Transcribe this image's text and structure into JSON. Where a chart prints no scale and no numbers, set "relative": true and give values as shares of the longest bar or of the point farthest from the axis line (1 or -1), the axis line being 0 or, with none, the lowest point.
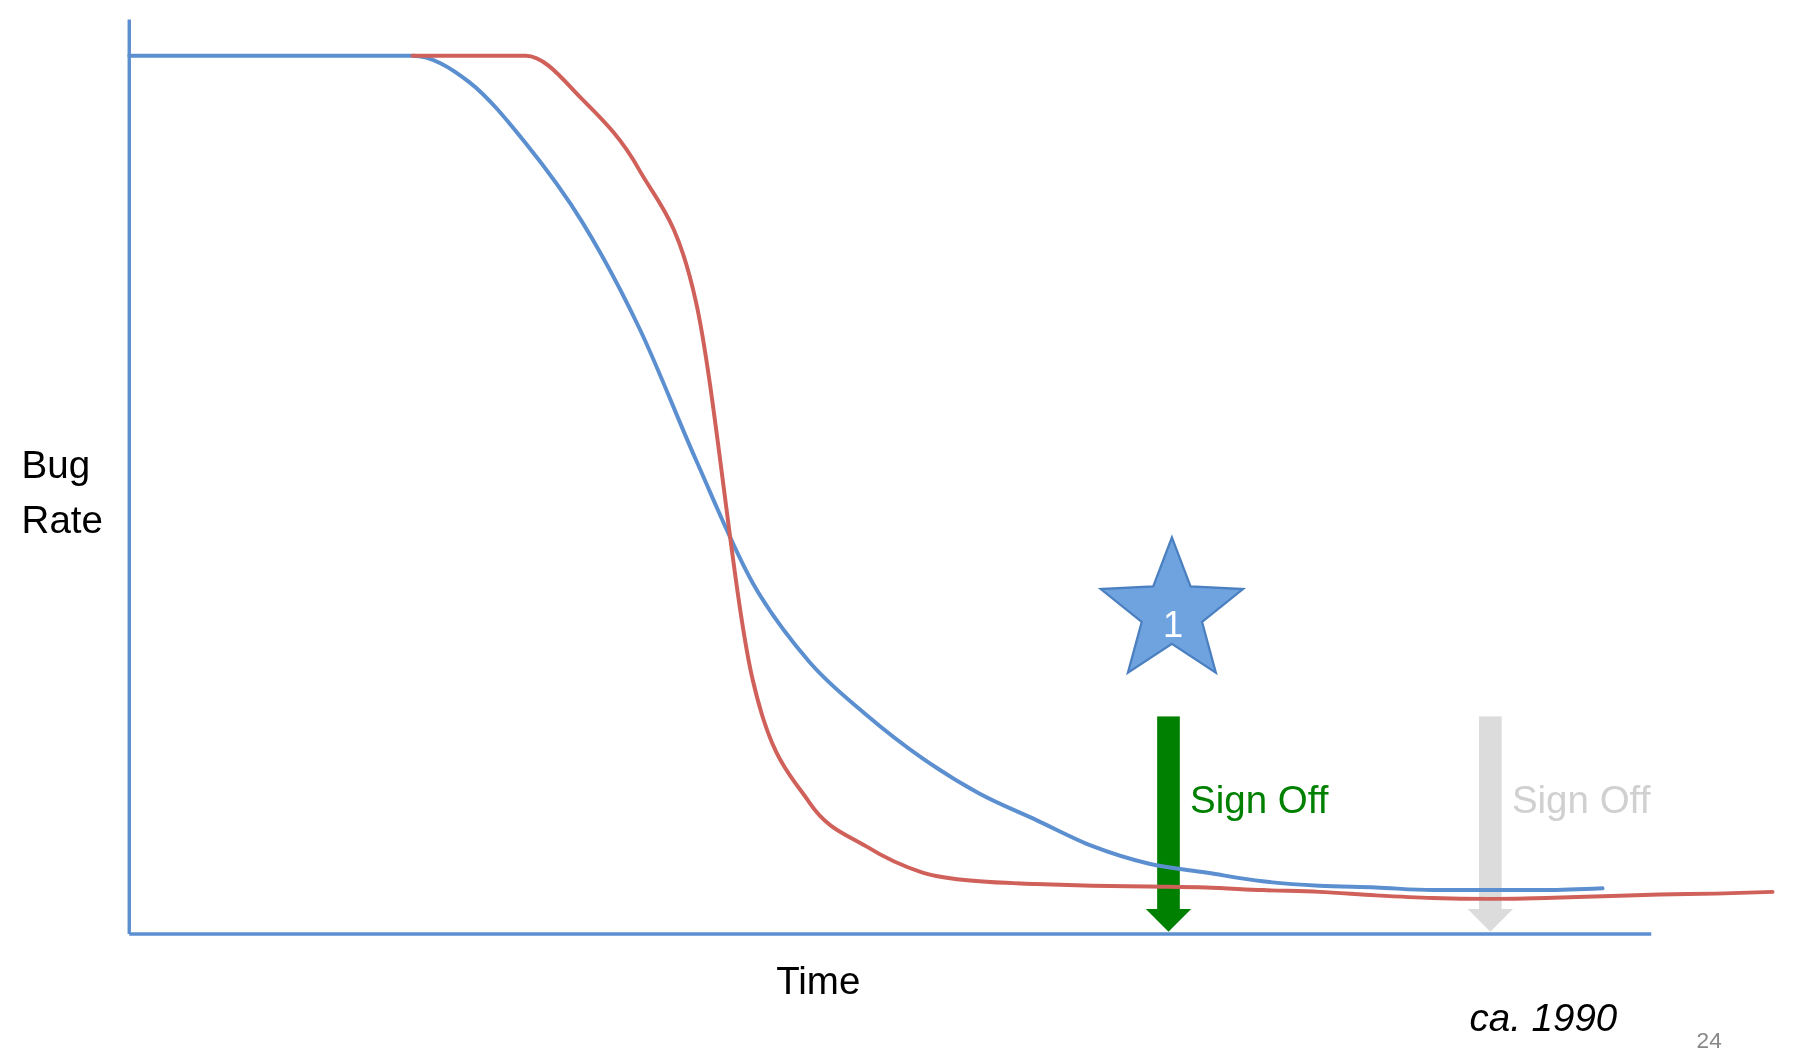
{
  "chart_data": {
    "type": "line",
    "relative": true,
    "xlabel": "Time",
    "ylabel": "Bug Rate",
    "categories": [
      null,
      null,
      null,
      null,
      null,
      null,
      null,
      null,
      null,
      null,
      null,
      null,
      null,
      null,
      null,
      null,
      null,
      null,
      null,
      null,
      null,
      null,
      null,
      null,
      null,
      null,
      null,
      null,
      null,
      null
    ],
    "series": [
      {
        "color": "#5b8fd0",
        "values": [
          1.0,
          1.0,
          1.0,
          1.0,
          1.0,
          1.0,
          0.97,
          0.9,
          0.81,
          0.69,
          0.54,
          0.4,
          0.31,
          0.25,
          0.2,
          0.16,
          0.13,
          0.1,
          0.08,
          0.07,
          0.06,
          0.055,
          0.053,
          0.05,
          0.05,
          0.05,
          0.052,
          null,
          null,
          null
        ]
      },
      {
        "color": "#d0605a",
        "values": [
          null,
          null,
          null,
          null,
          null,
          1.0,
          1.0,
          1.0,
          0.95,
          0.87,
          0.72,
          0.29,
          0.15,
          0.1,
          0.07,
          0.06,
          0.057,
          0.055,
          0.054,
          0.053,
          0.05,
          0.048,
          0.044,
          0.041,
          0.04,
          0.041,
          0.043,
          0.045,
          0.046,
          0.048
        ]
      }
    ],
    "annotations": [
      "1",
      "Sign Off",
      "Sign Off",
      "ca. 1990",
      "24"
    ],
    "grid": false
  }
}
